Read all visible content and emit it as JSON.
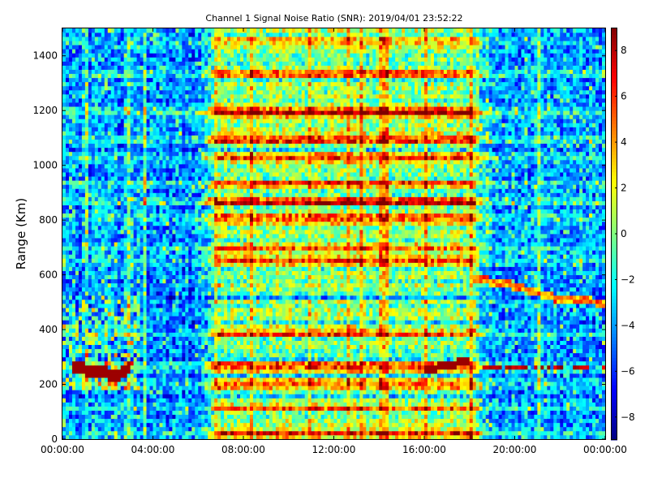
{
  "chart_data": {
    "type": "heatmap",
    "title": "Channel 1 Signal Noise Ratio (SNR): 2019/04/01 23:52:22",
    "xlabel": "",
    "ylabel": "Range (Km)",
    "x_range_hours": [
      0,
      24
    ],
    "ylim": [
      0,
      1500
    ],
    "x_tick_values_hours": [
      0,
      4,
      8,
      12,
      16,
      20,
      24
    ],
    "x_tick_labels": [
      "00:00:00",
      "04:00:00",
      "08:00:00",
      "12:00:00",
      "16:00:00",
      "20:00:00",
      "00:00:00"
    ],
    "y_ticks": [
      0,
      200,
      400,
      600,
      800,
      1000,
      1200,
      1400
    ],
    "colorbar": {
      "colormap": "jet",
      "range": [
        -9,
        9
      ],
      "ticks": [
        -8,
        -6,
        -4,
        -2,
        0,
        2,
        4,
        6,
        8
      ]
    },
    "grid": false,
    "features": [
      {
        "feature": "strong horizontal bands (high SNR)",
        "ranges_km": [
          20,
          115,
          200,
          270,
          380,
          650,
          700,
          810,
          870,
          940,
          1030,
          1100,
          1200,
          1330,
          1450
        ]
      },
      {
        "feature": "low-SNR background",
        "hour_ranges": [
          [
            0,
            7
          ],
          [
            18,
            24
          ]
        ]
      },
      {
        "feature": "high-SNR daytime region",
        "hour_range": [
          7,
          18
        ]
      },
      {
        "feature": "rising trace",
        "points_hour_km": [
          [
            16,
            250
          ],
          [
            17,
            270
          ],
          [
            18,
            290
          ]
        ]
      },
      {
        "feature": "descending trace",
        "points_hour_km": [
          [
            18,
            590
          ],
          [
            20,
            560
          ],
          [
            22,
            510
          ],
          [
            24,
            500
          ]
        ]
      },
      {
        "feature": "early morning burst",
        "points_hour_km": [
          [
            0.5,
            260
          ],
          [
            1.5,
            250
          ],
          [
            2.5,
            230
          ],
          [
            3,
            270
          ]
        ]
      }
    ]
  }
}
